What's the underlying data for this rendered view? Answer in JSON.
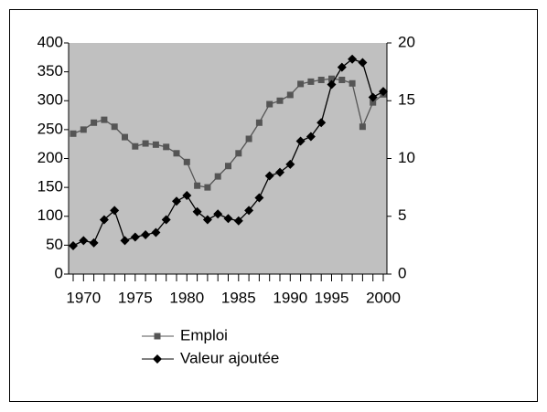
{
  "chart_data": {
    "type": "line",
    "categories": [
      null,
      "1970",
      null,
      null,
      null,
      null,
      "1975",
      null,
      null,
      null,
      null,
      "1980",
      null,
      null,
      null,
      null,
      "1985",
      null,
      null,
      null,
      null,
      "1990",
      null,
      null,
      null,
      "1995",
      null,
      null,
      null,
      null,
      "2000"
    ],
    "ylim": [
      0,
      400
    ],
    "yticks": [
      0,
      50,
      100,
      150,
      200,
      250,
      300,
      350,
      400
    ],
    "y2lim": [
      0,
      20
    ],
    "y2ticks": [
      0,
      5,
      10,
      15,
      20
    ],
    "plot_background": "#c0c0c0",
    "series": [
      {
        "name": "Emploi",
        "color": "#555555",
        "marker": "square",
        "values": [
          243,
          250,
          262,
          267,
          255,
          237,
          221,
          226,
          224,
          220,
          209,
          194,
          153,
          150,
          169,
          187,
          209,
          234,
          262,
          294,
          300,
          310,
          329,
          333,
          336,
          338,
          336,
          330,
          255,
          297,
          311
        ]
      },
      {
        "name": "Valeur ajoutée",
        "color": "#000000",
        "marker": "diamond",
        "axis": "y2",
        "values": [
          2.45,
          2.9,
          2.7,
          4.7,
          5.5,
          2.9,
          3.2,
          3.4,
          3.6,
          4.7,
          6.3,
          6.8,
          5.4,
          4.7,
          5.2,
          4.8,
          4.6,
          5.5,
          6.6,
          8.5,
          8.8,
          9.5,
          11.5,
          11.9,
          13.1,
          16.4,
          17.9,
          18.6,
          18.3,
          15.3,
          15.8
        ]
      }
    ]
  }
}
